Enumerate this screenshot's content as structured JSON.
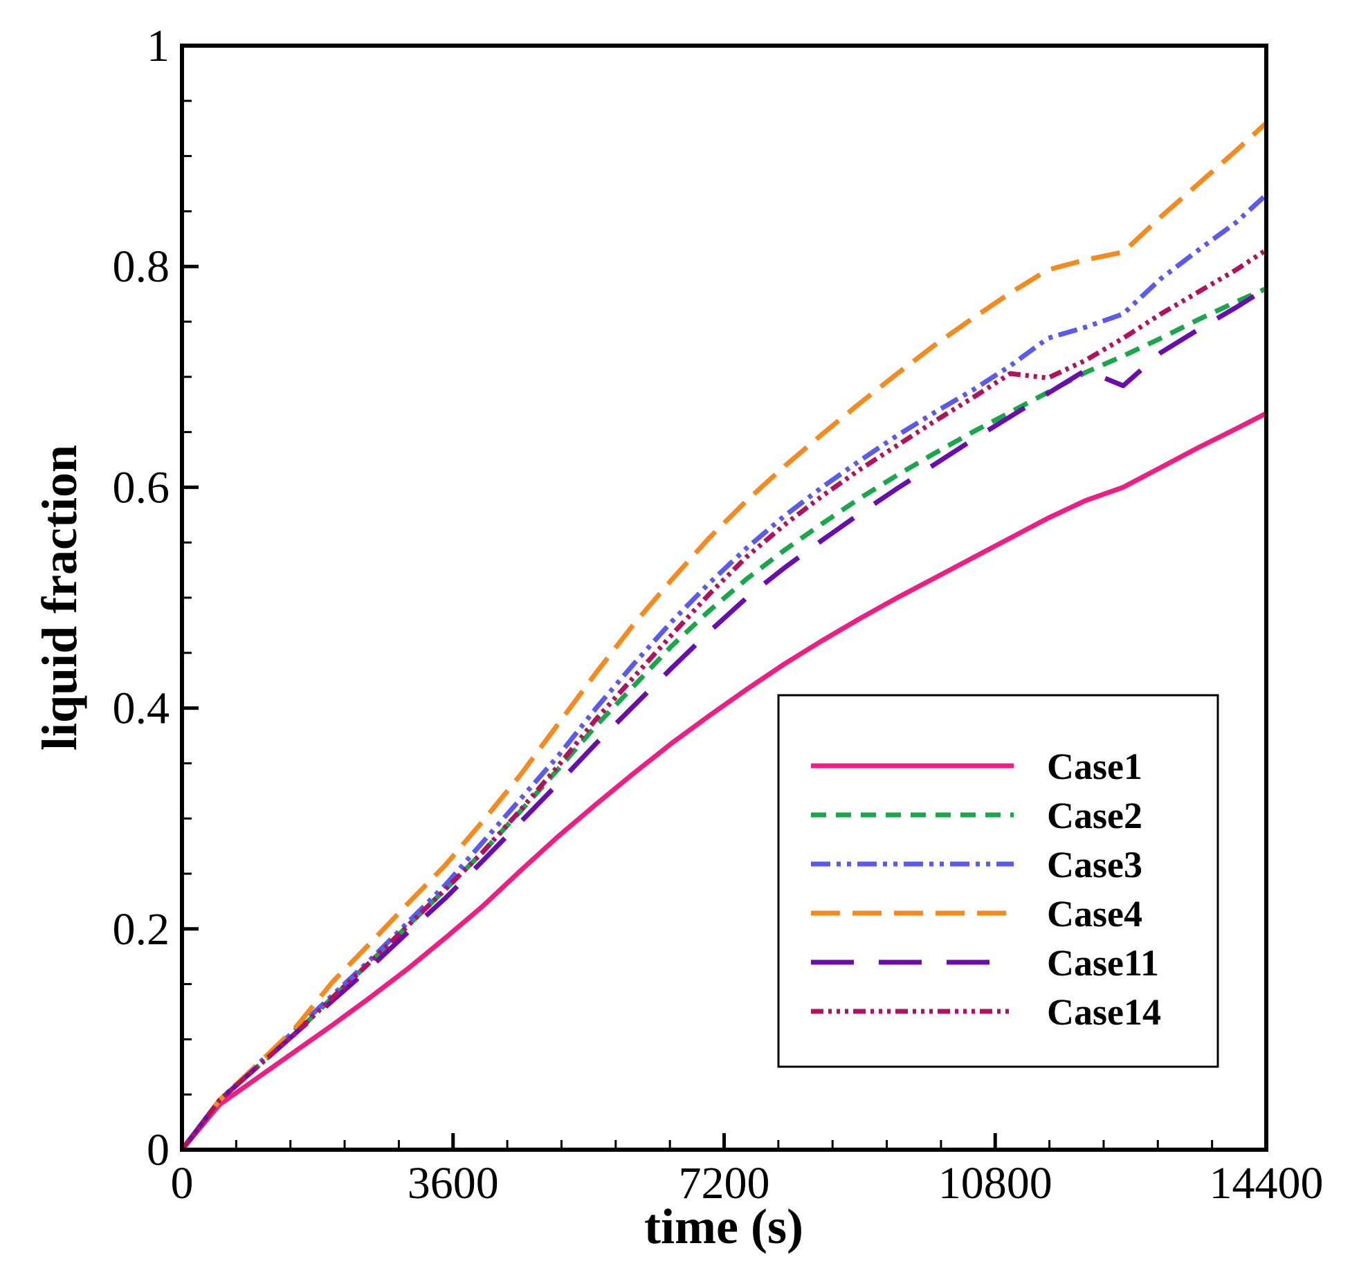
{
  "chart_data": {
    "type": "line",
    "title": "",
    "xlabel": "time (s)",
    "ylabel": "liquid fraction",
    "xlim": [
      0,
      14400
    ],
    "ylim": [
      0,
      1
    ],
    "x_ticks": [
      0,
      3600,
      7200,
      10800,
      14400
    ],
    "x_tick_labels": [
      "0",
      "3600",
      "7200",
      "10800",
      "14400"
    ],
    "y_ticks": [
      0,
      0.2,
      0.4,
      0.6,
      0.8,
      1
    ],
    "y_tick_labels": [
      "0",
      "0.2",
      "0.4",
      "0.6",
      "0.8",
      "1"
    ],
    "grid": false,
    "legend_position": "bottom-right",
    "x": [
      0,
      500,
      1000,
      1500,
      2000,
      2500,
      3000,
      3500,
      4000,
      4500,
      5000,
      5500,
      6000,
      6500,
      7000,
      7500,
      8000,
      8500,
      9000,
      9500,
      10000,
      10500,
      11000,
      11500,
      12000,
      12500,
      13000,
      13500,
      14000,
      14400
    ],
    "series": [
      {
        "name": "Case1",
        "color": "#f01e82",
        "dash": "solid",
        "values": [
          0,
          0.041,
          0.065,
          0.089,
          0.113,
          0.138,
          0.164,
          0.192,
          0.221,
          0.253,
          0.284,
          0.313,
          0.341,
          0.368,
          0.393,
          0.417,
          0.44,
          0.461,
          0.481,
          0.5,
          0.518,
          0.536,
          0.554,
          0.572,
          0.588,
          0.6,
          0.618,
          0.636,
          0.653,
          0.667
        ]
      },
      {
        "name": "Case2",
        "color": "#1aa64a",
        "dash": "short-dash",
        "values": [
          0,
          0.045,
          0.075,
          0.105,
          0.138,
          0.17,
          0.203,
          0.236,
          0.27,
          0.307,
          0.345,
          0.384,
          0.42,
          0.456,
          0.488,
          0.517,
          0.543,
          0.567,
          0.59,
          0.611,
          0.631,
          0.65,
          0.668,
          0.686,
          0.704,
          0.719,
          0.735,
          0.752,
          0.768,
          0.78
        ]
      },
      {
        "name": "Case3",
        "color": "#5a5aee",
        "dash": "dash-dot-dot",
        "values": [
          0,
          0.045,
          0.077,
          0.108,
          0.14,
          0.172,
          0.206,
          0.24,
          0.279,
          0.318,
          0.357,
          0.4,
          0.44,
          0.478,
          0.513,
          0.545,
          0.574,
          0.6,
          0.624,
          0.647,
          0.668,
          0.688,
          0.71,
          0.735,
          0.745,
          0.757,
          0.789,
          0.815,
          0.84,
          0.865
        ]
      },
      {
        "name": "Case4",
        "color": "#f68a1e",
        "dash": "long-dash",
        "values": [
          0,
          0.045,
          0.077,
          0.11,
          0.152,
          0.187,
          0.223,
          0.258,
          0.298,
          0.34,
          0.386,
          0.432,
          0.476,
          0.516,
          0.554,
          0.588,
          0.619,
          0.648,
          0.676,
          0.703,
          0.729,
          0.753,
          0.776,
          0.797,
          0.806,
          0.813,
          0.845,
          0.875,
          0.905,
          0.93
        ]
      },
      {
        "name": "Case11",
        "color": "#6a0dad",
        "dash": "long-dash-gap",
        "values": [
          0,
          0.045,
          0.075,
          0.105,
          0.135,
          0.165,
          0.197,
          0.228,
          0.262,
          0.297,
          0.332,
          0.368,
          0.402,
          0.436,
          0.469,
          0.5,
          0.527,
          0.552,
          0.576,
          0.599,
          0.621,
          0.643,
          0.664,
          0.685,
          0.706,
          0.692,
          0.722,
          0.743,
          0.763,
          0.78
        ]
      },
      {
        "name": "Case14",
        "color": "#b0135e",
        "dash": "dash-dot-dot-dot",
        "values": [
          0,
          0.045,
          0.075,
          0.105,
          0.138,
          0.17,
          0.203,
          0.236,
          0.27,
          0.308,
          0.348,
          0.39,
          0.428,
          0.466,
          0.503,
          0.537,
          0.566,
          0.592,
          0.616,
          0.638,
          0.66,
          0.681,
          0.703,
          0.699,
          0.715,
          0.735,
          0.757,
          0.777,
          0.797,
          0.815
        ]
      }
    ]
  }
}
